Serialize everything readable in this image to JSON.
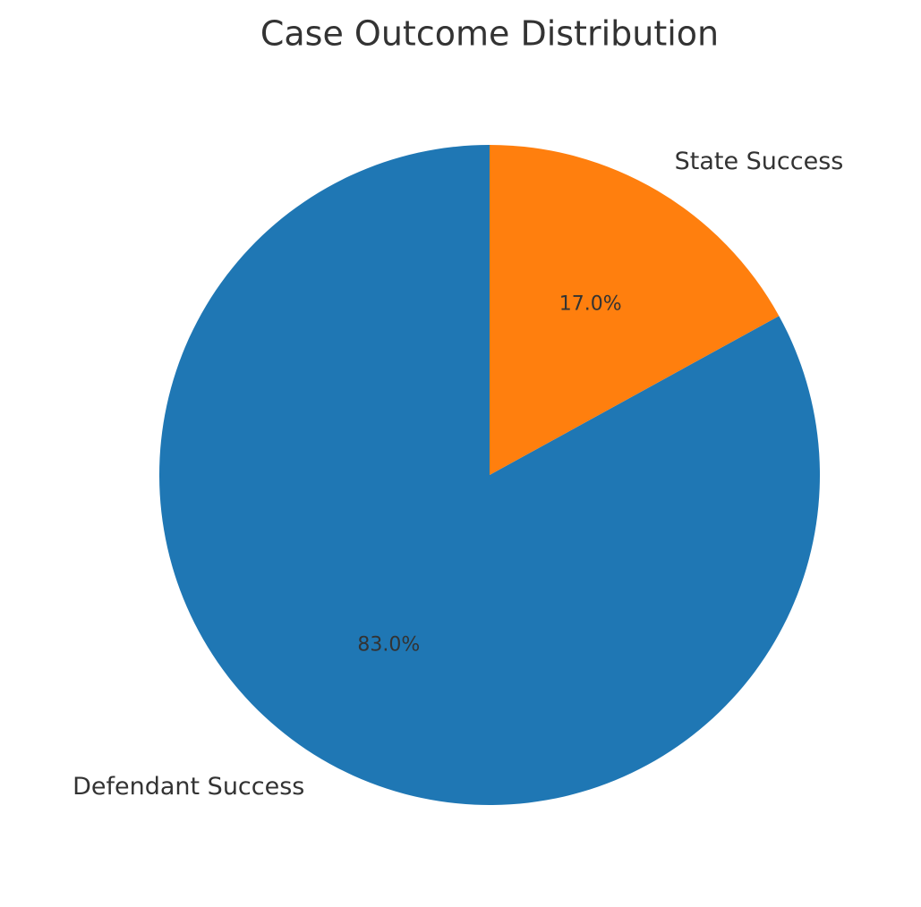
{
  "chart_data": {
    "type": "pie",
    "title": "Case Outcome Distribution",
    "categories": [
      "Defendant Success",
      "State Success"
    ],
    "values": [
      83.0,
      17.0
    ],
    "value_labels": [
      "83.0%",
      "17.0%"
    ],
    "colors": [
      "#1f77b4",
      "#ff7f0e"
    ]
  }
}
